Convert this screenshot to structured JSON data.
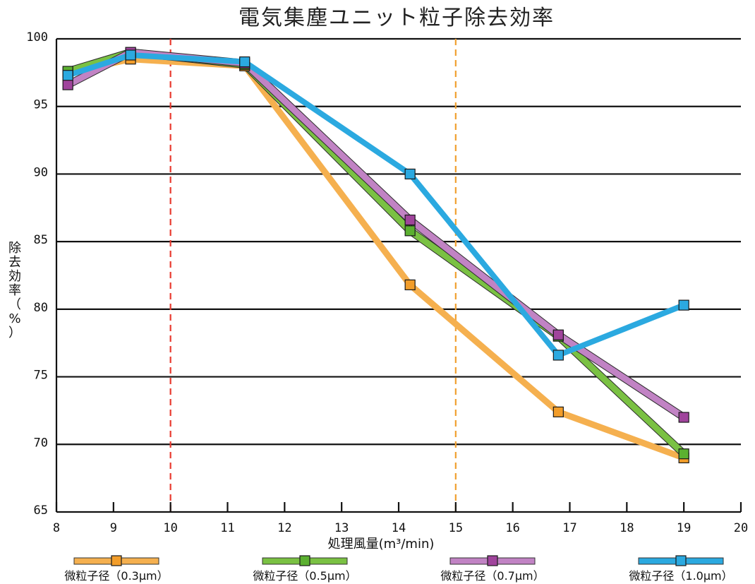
{
  "chart_data": {
    "type": "line",
    "title": "電気集塵ユニット粒子除去効率",
    "xlabel": "処理風量(m³/min)",
    "ylabel": [
      "除",
      "去",
      "効",
      "率",
      "（",
      "%",
      "）"
    ],
    "xlim": [
      8,
      20
    ],
    "ylim": [
      65,
      100
    ],
    "x_ticks": [
      8,
      9,
      10,
      11,
      12,
      13,
      14,
      15,
      16,
      17,
      18,
      19,
      20
    ],
    "y_ticks": [
      65,
      70,
      75,
      80,
      85,
      90,
      95,
      100
    ],
    "grid": "horizontal",
    "legend_position": "bottom",
    "reference_lines": [
      {
        "x": 10,
        "color": "#e83a2f",
        "style": "dashed"
      },
      {
        "x": 15,
        "color": "#f0a030",
        "style": "dashed"
      }
    ],
    "series": [
      {
        "name": "微粒子径（0.3μm）",
        "color": "#f5b04f",
        "marker": "#f29d2a",
        "x": [
          8.2,
          9.3,
          11.3,
          14.2,
          16.8,
          19.0
        ],
        "y": [
          97.5,
          98.5,
          98.0,
          81.8,
          72.4,
          69.0
        ]
      },
      {
        "name": "微粒子径（0.5μm）",
        "color": "#7ac143",
        "marker": "#5bb030",
        "x": [
          8.2,
          9.3,
          11.3,
          14.2,
          16.8,
          19.0
        ],
        "y": [
          97.6,
          99.0,
          98.1,
          85.8,
          78.0,
          69.3
        ]
      },
      {
        "name": "微粒子径（0.7μm）",
        "color": "#c183c4",
        "marker": "#a0449c",
        "x": [
          8.2,
          9.3,
          11.3,
          14.2,
          16.8,
          19.0
        ],
        "y": [
          96.6,
          99.0,
          98.2,
          86.6,
          78.1,
          72.0
        ]
      },
      {
        "name": "微粒子径（1.0μm）",
        "color": "#2ba9e0",
        "marker": "#2ba9e0",
        "x": [
          8.2,
          9.3,
          11.3,
          14.2,
          16.8,
          19.0
        ],
        "y": [
          97.3,
          98.8,
          98.3,
          90.0,
          76.6,
          80.3
        ]
      }
    ]
  }
}
